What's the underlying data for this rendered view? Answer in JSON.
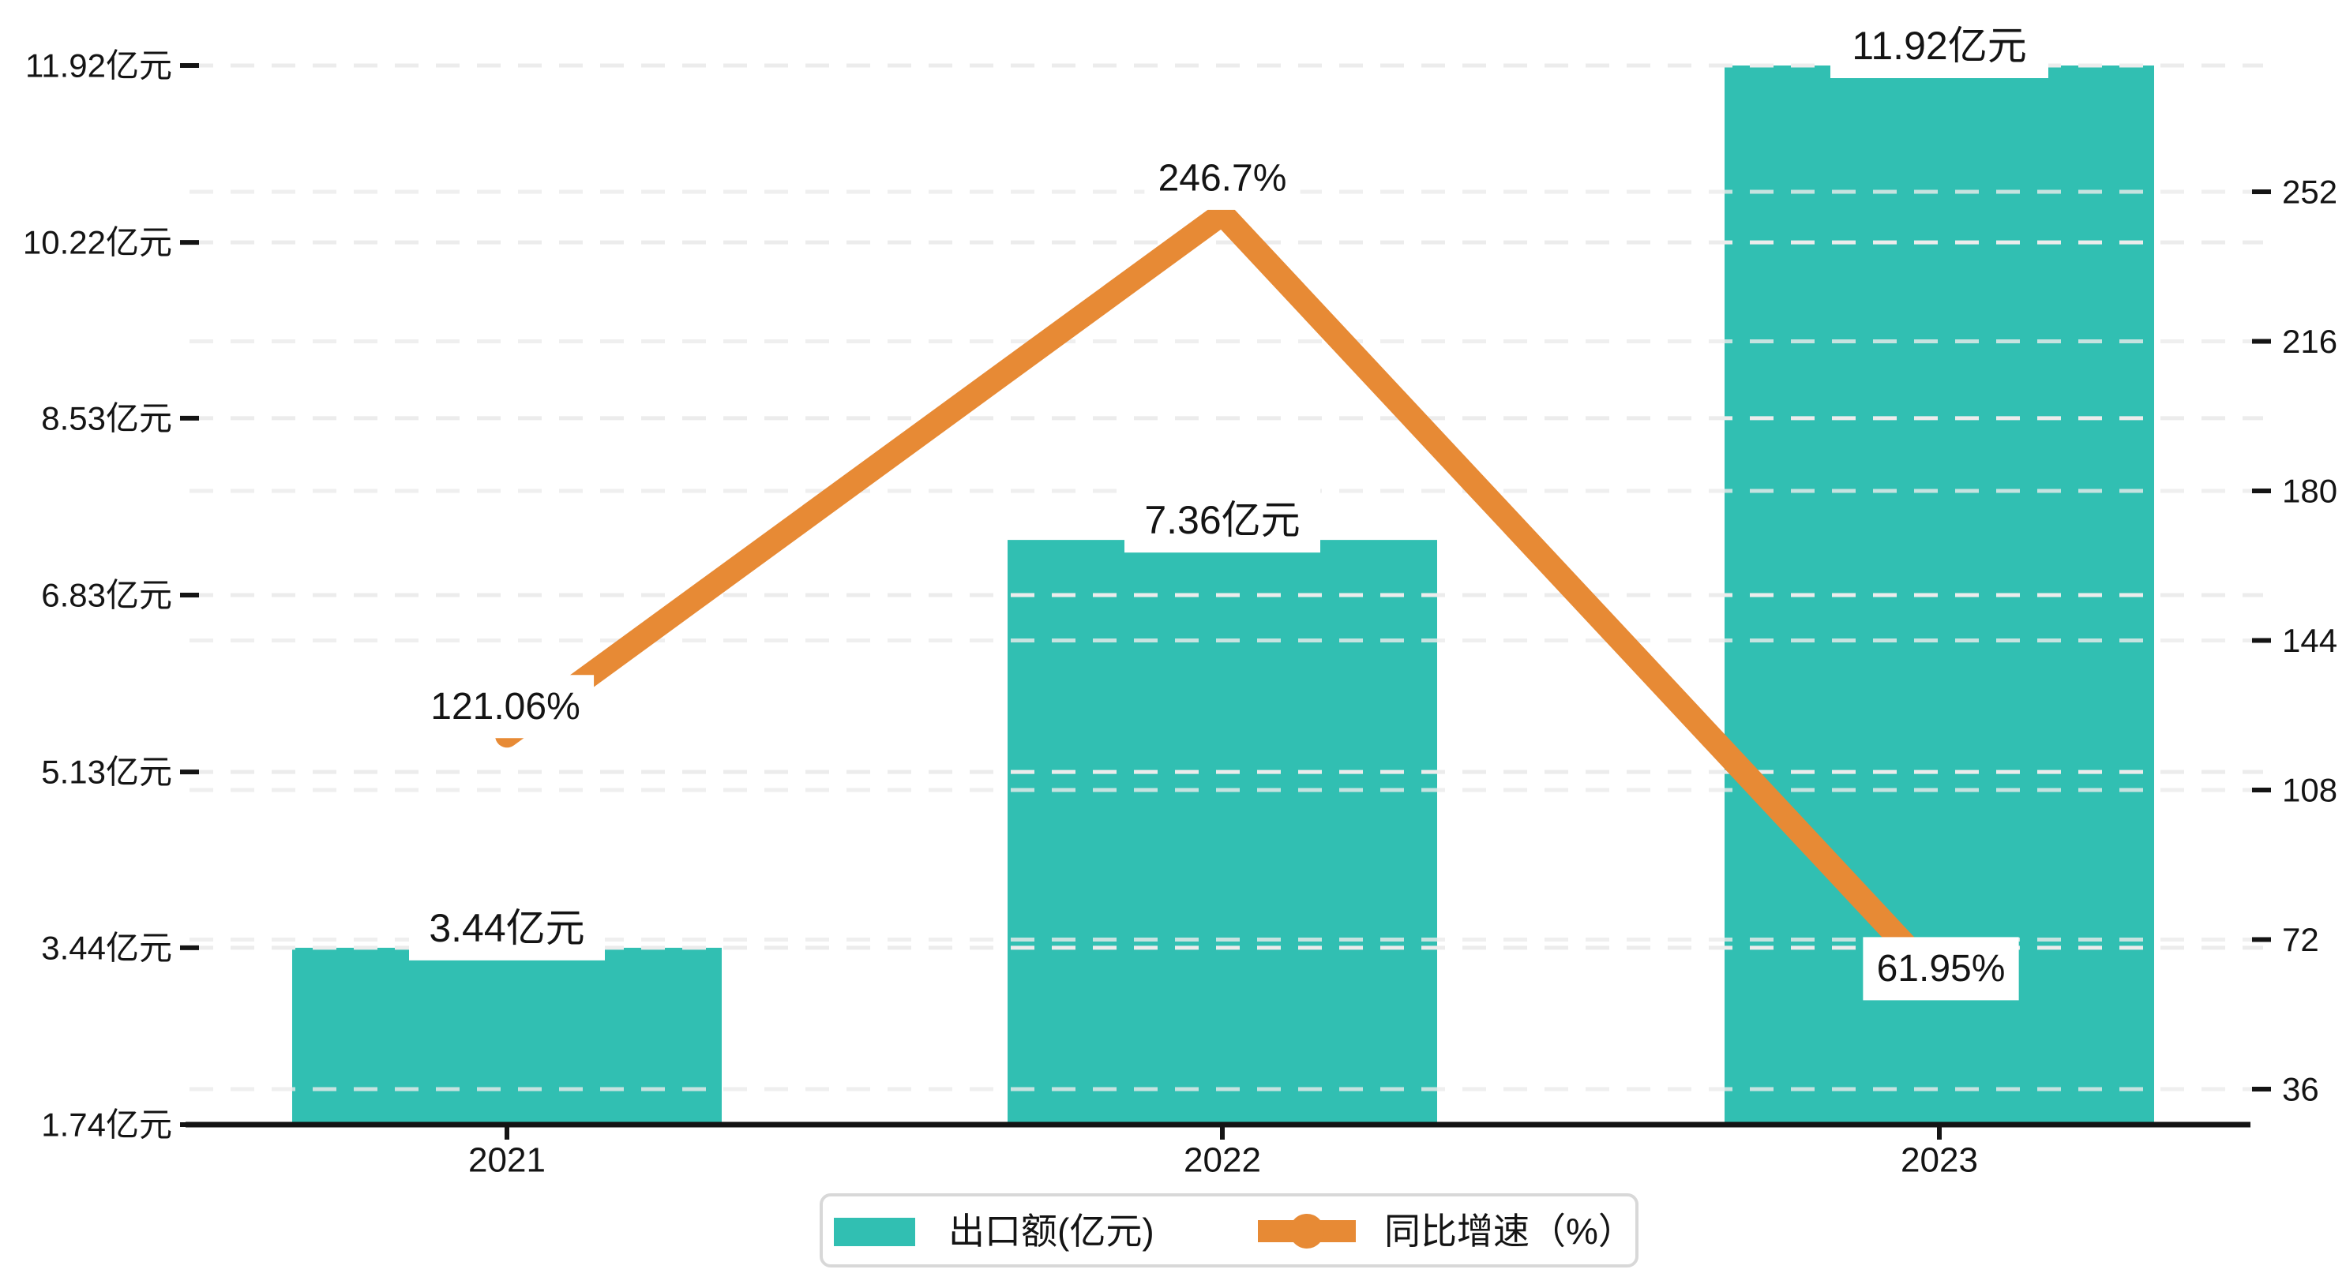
{
  "chart_data": {
    "type": "bar+line",
    "title": "",
    "categories": [
      "2021",
      "2022",
      "2023"
    ],
    "series": [
      {
        "name": "出口额(亿元)",
        "type": "bar",
        "values": [
          3.44,
          7.36,
          11.92
        ],
        "labels": [
          "3.44亿元",
          "7.36亿元",
          "11.92亿元"
        ],
        "color": "#31BFB2"
      },
      {
        "name": "同比增速（%）",
        "type": "line",
        "values": [
          121.06,
          246.7,
          61.95
        ],
        "labels": [
          "121.06%",
          "246.7%",
          "61.95%"
        ],
        "color": "#E78A35"
      }
    ],
    "left_axis": {
      "tick_labels": [
        "11.92亿元",
        "10.22亿元",
        "8.53亿元",
        "6.83亿元",
        "5.13亿元",
        "3.44亿元",
        "1.74亿元"
      ],
      "tick_values": [
        11.92,
        10.22,
        8.53,
        6.83,
        5.13,
        3.44,
        1.74
      ],
      "min": 1.74,
      "max": 11.92
    },
    "right_axis": {
      "tick_labels": [
        "252",
        "216",
        "180",
        "144",
        "108",
        "72",
        "36"
      ],
      "tick_values": [
        252,
        216,
        180,
        144,
        108,
        72,
        36
      ],
      "top_value": 252,
      "bottom_value": 36
    },
    "legend": [
      {
        "label": "出口额(亿元)",
        "swatch": "bar",
        "color": "#31BFB2"
      },
      {
        "label": "同比增速（%）",
        "swatch": "line-dot",
        "color": "#E78A35"
      }
    ],
    "grid": "dashed",
    "grid_color": "#ececec",
    "axis_color": "#141414",
    "label_box_color": "#ffffff"
  }
}
